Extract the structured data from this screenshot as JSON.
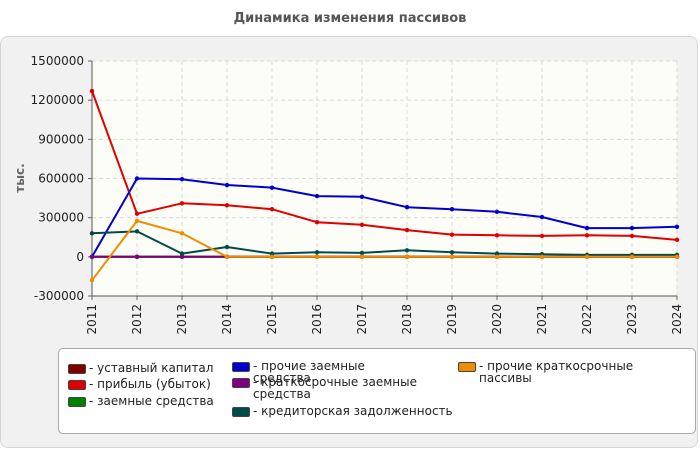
{
  "title": "Динамика изменения пассивов",
  "chart_data": {
    "type": "line",
    "title": "Динамика изменения пассивов",
    "ylabel": "тыс.",
    "xlabel": "",
    "x": [
      "2011",
      "2012",
      "2013",
      "2014",
      "2015",
      "2016",
      "2017",
      "2018",
      "2019",
      "2020",
      "2021",
      "2022",
      "2023",
      "2024"
    ],
    "ylim": [
      -300000,
      1500000
    ],
    "yticks": [
      "-300000",
      "0",
      "300000",
      "600000",
      "900000",
      "1200000",
      "1500000"
    ],
    "grid": true,
    "legend_position": "bottom",
    "series": [
      {
        "name": "- уставный капитал",
        "color": "#800000",
        "values": [
          0,
          0,
          0,
          0,
          0,
          0,
          0,
          0,
          0,
          0,
          0,
          0,
          0,
          0
        ]
      },
      {
        "name": "- прибыль (убыток)",
        "color": "#e00000",
        "values": [
          1270000,
          330000,
          410000,
          395000,
          365000,
          265000,
          245000,
          205000,
          170000,
          165000,
          160000,
          165000,
          160000,
          130000
        ]
      },
      {
        "name": "- заемные средства",
        "color": "#008000",
        "values": [
          0,
          0,
          0,
          0,
          0,
          0,
          0,
          0,
          0,
          0,
          0,
          0,
          0,
          0
        ]
      },
      {
        "name": "- прочие заемные средства",
        "color": "#0000d0",
        "values": [
          0,
          600000,
          595000,
          550000,
          530000,
          465000,
          460000,
          380000,
          365000,
          345000,
          305000,
          220000,
          220000,
          230000
        ]
      },
      {
        "name": "- краткосрочные заемные средства",
        "color": "#800080",
        "values": [
          0,
          0,
          0,
          0,
          0,
          0,
          0,
          0,
          0,
          0,
          0,
          0,
          0,
          0
        ]
      },
      {
        "name": "- кредиторская задолженность",
        "color": "#004a4a",
        "values": [
          180000,
          195000,
          25000,
          75000,
          25000,
          35000,
          30000,
          50000,
          35000,
          25000,
          20000,
          15000,
          15000,
          15000
        ]
      },
      {
        "name": "- прочие краткосрочные пассивы",
        "color": "#f08c00",
        "values": [
          -180000,
          275000,
          180000,
          0,
          0,
          0,
          0,
          0,
          0,
          0,
          0,
          0,
          0,
          0
        ]
      }
    ]
  }
}
